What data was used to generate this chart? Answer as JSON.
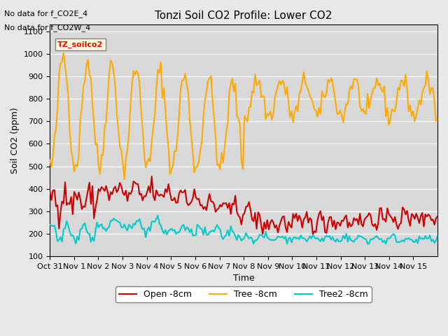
{
  "title": "Tonzi Soil CO2 Profile: Lower CO2",
  "ylabel": "Soil CO2 (ppm)",
  "xlabel": "Time",
  "note_line1": "No data for f_CO2E_4",
  "note_line2": "No data for f_CO2W_4",
  "box_label": "TZ_soilco2",
  "ylim": [
    100,
    1130
  ],
  "yticks": [
    100,
    200,
    300,
    400,
    500,
    600,
    700,
    800,
    900,
    1000,
    1100
  ],
  "xtick_labels": [
    "Oct 31",
    "Nov 1",
    "Nov 2",
    "Nov 3",
    "Nov 4",
    "Nov 5",
    "Nov 6",
    "Nov 7",
    "Nov 8",
    "Nov 9",
    "Nov 10",
    "Nov 11",
    "Nov 12",
    "Nov 13",
    "Nov 14",
    "Nov 15"
  ],
  "legend_labels": [
    "Open -8cm",
    "Tree -8cm",
    "Tree2 -8cm"
  ],
  "legend_colors": [
    "#cc0000",
    "#ffaa00",
    "#00cccc"
  ],
  "bg_color": "#e8e8e8",
  "plot_bg_color": "#d8d8d8",
  "grid_color": "#ffffff",
  "line_width": 1.5,
  "n_days": 16
}
